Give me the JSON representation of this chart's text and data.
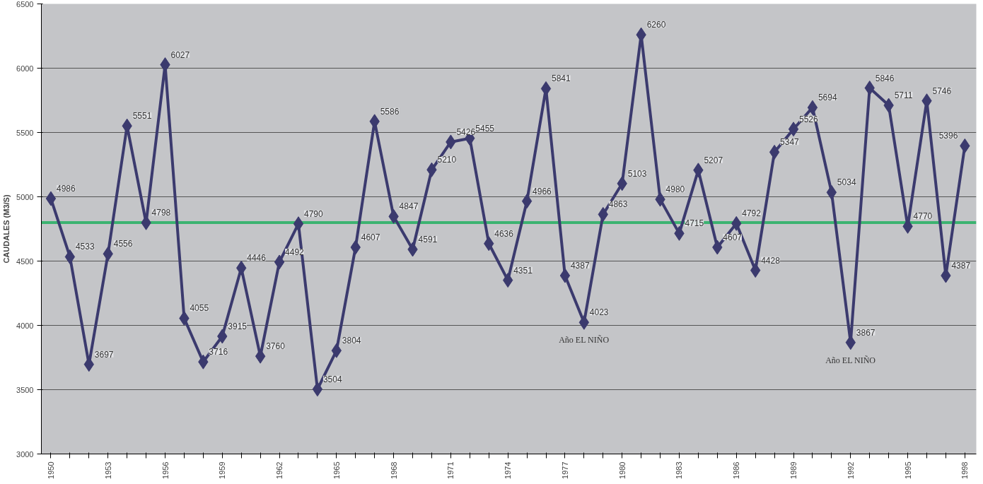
{
  "chart_data": {
    "type": "line",
    "ylabel": "CAUDALES (M3/S)",
    "x": [
      1950,
      1951,
      1952,
      1953,
      1954,
      1955,
      1956,
      1957,
      1958,
      1959,
      1960,
      1961,
      1962,
      1963,
      1964,
      1965,
      1966,
      1967,
      1968,
      1969,
      1970,
      1971,
      1972,
      1973,
      1974,
      1975,
      1976,
      1977,
      1978,
      1979,
      1980,
      1981,
      1982,
      1983,
      1984,
      1985,
      1986,
      1987,
      1988,
      1989,
      1990,
      1991,
      1992,
      1993,
      1994,
      1995,
      1996,
      1997,
      1998
    ],
    "series": [
      {
        "color": "#3b3a6e",
        "values": [
          4986,
          4533,
          3697,
          4556,
          5551,
          4798,
          6027,
          4055,
          3716,
          3915,
          4446,
          3760,
          4492,
          4790,
          3504,
          3804,
          4607,
          5586,
          4847,
          4591,
          5210,
          5426,
          5455,
          4636,
          4351,
          4966,
          5841,
          4387,
          4023,
          4863,
          5103,
          6260,
          4980,
          4715,
          5207,
          4607,
          4792,
          4428,
          5347,
          5526,
          5694,
          5034,
          3867,
          5846,
          5711,
          4770,
          5746,
          4387,
          5396
        ]
      }
    ],
    "data_labels": true,
    "marker": "diamond",
    "line_style": "solid",
    "grid": "y",
    "xlim": [
      1949.5,
      1998.6
    ],
    "xticks": [
      1950,
      {
        "value": 1951,
        "label": null
      },
      {
        "value": 1952,
        "label": null
      },
      1953,
      {
        "value": 1954,
        "label": null
      },
      {
        "value": 1955,
        "label": null
      },
      1956,
      {
        "value": 1957,
        "label": null
      },
      {
        "value": 1958,
        "label": null
      },
      1959,
      {
        "value": 1960,
        "label": null
      },
      {
        "value": 1961,
        "label": null
      },
      1962,
      {
        "value": 1963,
        "label": null
      },
      {
        "value": 1964,
        "label": null
      },
      1965,
      {
        "value": 1966,
        "label": null
      },
      {
        "value": 1967,
        "label": null
      },
      1968,
      {
        "value": 1969,
        "label": null
      },
      {
        "value": 1970,
        "label": null
      },
      1971,
      {
        "value": 1972,
        "label": null
      },
      {
        "value": 1973,
        "label": null
      },
      1974,
      {
        "value": 1975,
        "label": null
      },
      {
        "value": 1976,
        "label": null
      },
      1977,
      {
        "value": 1978,
        "label": null
      },
      {
        "value": 1979,
        "label": null
      },
      1980,
      {
        "value": 1981,
        "label": null
      },
      {
        "value": 1982,
        "label": null
      },
      1983,
      {
        "value": 1984,
        "label": null
      },
      {
        "value": 1985,
        "label": null
      },
      1986,
      {
        "value": 1987,
        "label": null
      },
      {
        "value": 1988,
        "label": null
      },
      1989,
      {
        "value": 1990,
        "label": null
      },
      {
        "value": 1991,
        "label": null
      },
      1992,
      {
        "value": 1993,
        "label": null
      },
      {
        "value": 1994,
        "label": null
      },
      1995,
      {
        "value": 1996,
        "label": null
      },
      {
        "value": 1997,
        "label": null
      },
      1998
    ],
    "ylim": [
      3000,
      6500
    ],
    "yticks": [
      3000,
      3500,
      4000,
      4500,
      5000,
      5500,
      6000,
      6500
    ],
    "ref_lines": [
      {
        "axis": "y",
        "value": 4800,
        "color": "#3cb371"
      }
    ],
    "annotations": [
      {
        "text": "Año EL NIÑO",
        "x": 1978,
        "y": 4023
      },
      {
        "text": "Año EL NIÑO",
        "x": 1992,
        "y": 3867
      }
    ]
  }
}
